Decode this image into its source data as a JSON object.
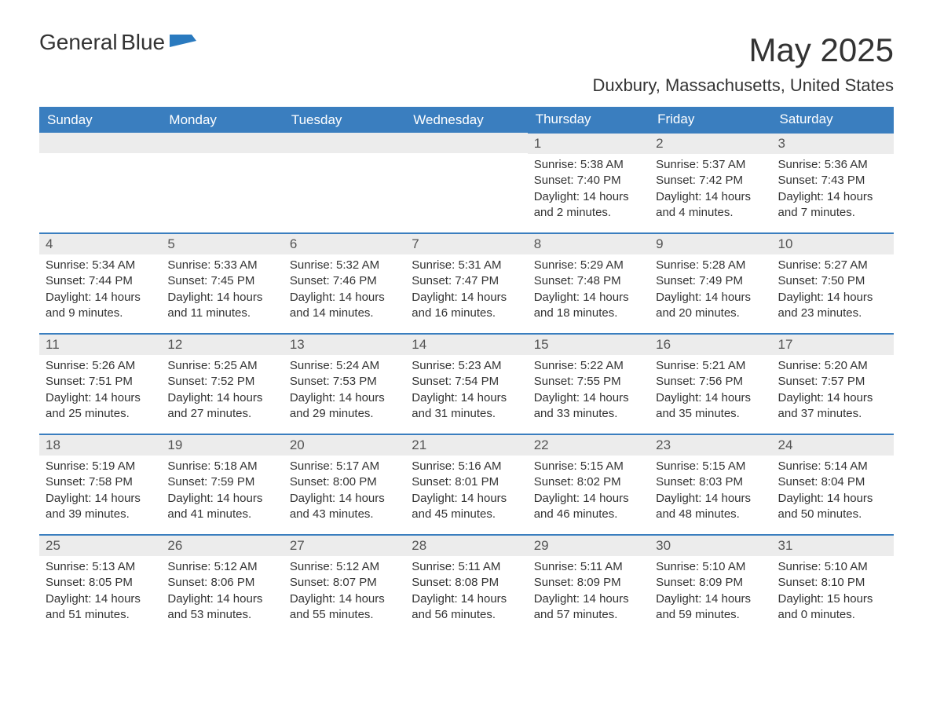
{
  "logo": {
    "word1": "General",
    "word2": "Blue",
    "icon_fill": "#2a7abf"
  },
  "title": "May 2025",
  "location": "Duxbury, Massachusetts, United States",
  "colors": {
    "header_bg": "#3a7ebf",
    "header_text": "#ffffff",
    "daynum_bg": "#ececec",
    "row_border": "#3a7ebf",
    "body_text": "#333333"
  },
  "weekdays": [
    "Sunday",
    "Monday",
    "Tuesday",
    "Wednesday",
    "Thursday",
    "Friday",
    "Saturday"
  ],
  "weeks": [
    [
      {
        "blank": true
      },
      {
        "blank": true
      },
      {
        "blank": true
      },
      {
        "blank": true
      },
      {
        "day": "1",
        "sunrise": "5:38 AM",
        "sunset": "7:40 PM",
        "daylight": "14 hours and 2 minutes."
      },
      {
        "day": "2",
        "sunrise": "5:37 AM",
        "sunset": "7:42 PM",
        "daylight": "14 hours and 4 minutes."
      },
      {
        "day": "3",
        "sunrise": "5:36 AM",
        "sunset": "7:43 PM",
        "daylight": "14 hours and 7 minutes."
      }
    ],
    [
      {
        "day": "4",
        "sunrise": "5:34 AM",
        "sunset": "7:44 PM",
        "daylight": "14 hours and 9 minutes."
      },
      {
        "day": "5",
        "sunrise": "5:33 AM",
        "sunset": "7:45 PM",
        "daylight": "14 hours and 11 minutes."
      },
      {
        "day": "6",
        "sunrise": "5:32 AM",
        "sunset": "7:46 PM",
        "daylight": "14 hours and 14 minutes."
      },
      {
        "day": "7",
        "sunrise": "5:31 AM",
        "sunset": "7:47 PM",
        "daylight": "14 hours and 16 minutes."
      },
      {
        "day": "8",
        "sunrise": "5:29 AM",
        "sunset": "7:48 PM",
        "daylight": "14 hours and 18 minutes."
      },
      {
        "day": "9",
        "sunrise": "5:28 AM",
        "sunset": "7:49 PM",
        "daylight": "14 hours and 20 minutes."
      },
      {
        "day": "10",
        "sunrise": "5:27 AM",
        "sunset": "7:50 PM",
        "daylight": "14 hours and 23 minutes."
      }
    ],
    [
      {
        "day": "11",
        "sunrise": "5:26 AM",
        "sunset": "7:51 PM",
        "daylight": "14 hours and 25 minutes."
      },
      {
        "day": "12",
        "sunrise": "5:25 AM",
        "sunset": "7:52 PM",
        "daylight": "14 hours and 27 minutes."
      },
      {
        "day": "13",
        "sunrise": "5:24 AM",
        "sunset": "7:53 PM",
        "daylight": "14 hours and 29 minutes."
      },
      {
        "day": "14",
        "sunrise": "5:23 AM",
        "sunset": "7:54 PM",
        "daylight": "14 hours and 31 minutes."
      },
      {
        "day": "15",
        "sunrise": "5:22 AM",
        "sunset": "7:55 PM",
        "daylight": "14 hours and 33 minutes."
      },
      {
        "day": "16",
        "sunrise": "5:21 AM",
        "sunset": "7:56 PM",
        "daylight": "14 hours and 35 minutes."
      },
      {
        "day": "17",
        "sunrise": "5:20 AM",
        "sunset": "7:57 PM",
        "daylight": "14 hours and 37 minutes."
      }
    ],
    [
      {
        "day": "18",
        "sunrise": "5:19 AM",
        "sunset": "7:58 PM",
        "daylight": "14 hours and 39 minutes."
      },
      {
        "day": "19",
        "sunrise": "5:18 AM",
        "sunset": "7:59 PM",
        "daylight": "14 hours and 41 minutes."
      },
      {
        "day": "20",
        "sunrise": "5:17 AM",
        "sunset": "8:00 PM",
        "daylight": "14 hours and 43 minutes."
      },
      {
        "day": "21",
        "sunrise": "5:16 AM",
        "sunset": "8:01 PM",
        "daylight": "14 hours and 45 minutes."
      },
      {
        "day": "22",
        "sunrise": "5:15 AM",
        "sunset": "8:02 PM",
        "daylight": "14 hours and 46 minutes."
      },
      {
        "day": "23",
        "sunrise": "5:15 AM",
        "sunset": "8:03 PM",
        "daylight": "14 hours and 48 minutes."
      },
      {
        "day": "24",
        "sunrise": "5:14 AM",
        "sunset": "8:04 PM",
        "daylight": "14 hours and 50 minutes."
      }
    ],
    [
      {
        "day": "25",
        "sunrise": "5:13 AM",
        "sunset": "8:05 PM",
        "daylight": "14 hours and 51 minutes."
      },
      {
        "day": "26",
        "sunrise": "5:12 AM",
        "sunset": "8:06 PM",
        "daylight": "14 hours and 53 minutes."
      },
      {
        "day": "27",
        "sunrise": "5:12 AM",
        "sunset": "8:07 PM",
        "daylight": "14 hours and 55 minutes."
      },
      {
        "day": "28",
        "sunrise": "5:11 AM",
        "sunset": "8:08 PM",
        "daylight": "14 hours and 56 minutes."
      },
      {
        "day": "29",
        "sunrise": "5:11 AM",
        "sunset": "8:09 PM",
        "daylight": "14 hours and 57 minutes."
      },
      {
        "day": "30",
        "sunrise": "5:10 AM",
        "sunset": "8:09 PM",
        "daylight": "14 hours and 59 minutes."
      },
      {
        "day": "31",
        "sunrise": "5:10 AM",
        "sunset": "8:10 PM",
        "daylight": "15 hours and 0 minutes."
      }
    ]
  ],
  "labels": {
    "sunrise_prefix": "Sunrise: ",
    "sunset_prefix": "Sunset: ",
    "daylight_prefix": "Daylight: "
  }
}
